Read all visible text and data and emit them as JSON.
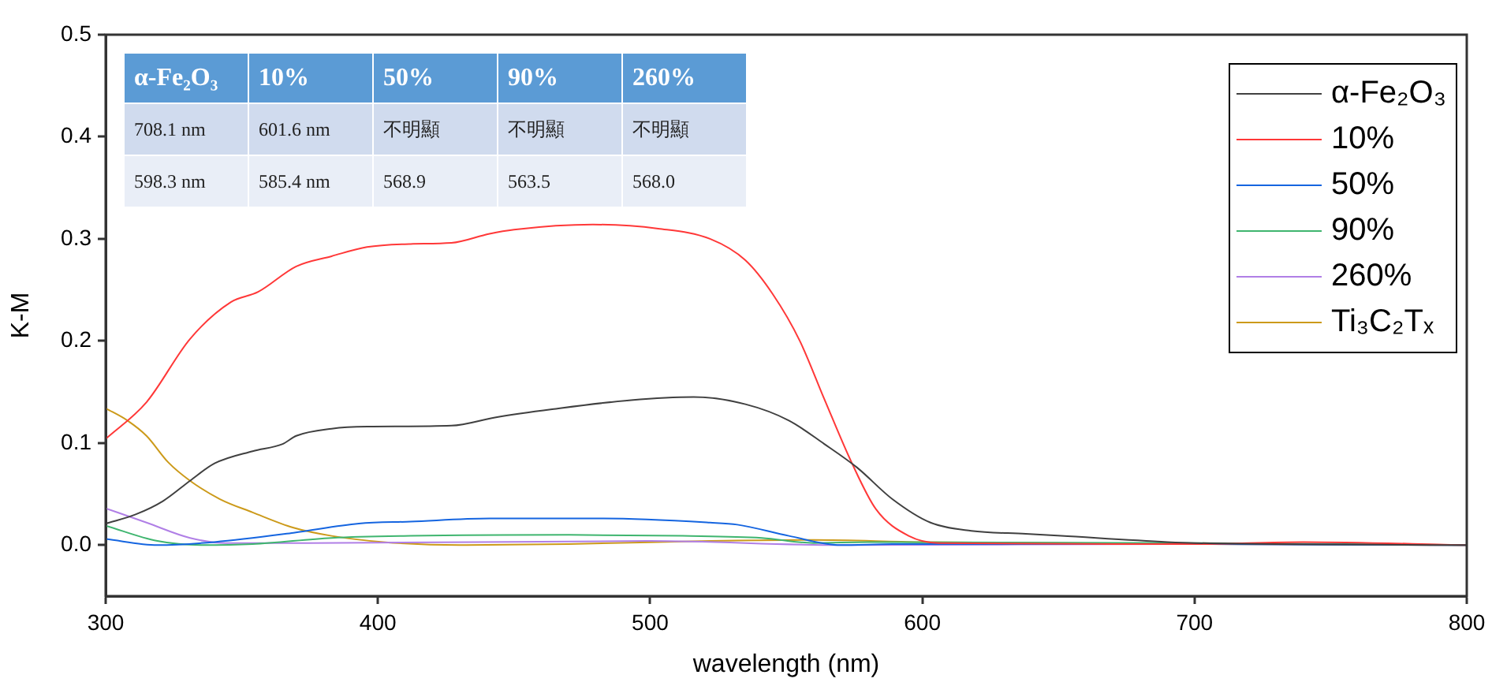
{
  "chart_data": {
    "type": "line",
    "xlabel": "wavelength (nm)",
    "ylabel": "K-M",
    "xlim": [
      300,
      800
    ],
    "xticks": [
      300,
      400,
      500,
      600,
      700,
      800
    ],
    "ylim": [
      -0.05,
      0.5
    ],
    "yticks": [
      {
        "value": 0,
        "label": "0.0"
      },
      0.1,
      0.2,
      0.3,
      0.4,
      0.5
    ],
    "legend": "top right",
    "marker": "none",
    "line_style": "solid",
    "grid": false,
    "annotations": [
      "α-Fe₂O₃",
      "10%",
      "50%",
      "90%",
      "260%",
      "708.1 nm",
      "601.6 nm",
      "不明顯",
      "不明顯",
      "不明顯",
      "598.3 nm",
      "585.4 nm",
      "568.9",
      "563.5",
      "568.0"
    ],
    "series": [
      {
        "name": "α-Fe₂O₃",
        "color": "#404040",
        "x": [
          300,
          311,
          321,
          331,
          340,
          354,
          365,
          370,
          383,
          396,
          427,
          443,
          464,
          493,
          516,
          535,
          551,
          564,
          576,
          589,
          603,
          618,
          638,
          651,
          690,
          700,
          800
        ],
        "values": [
          0.021,
          0.03,
          0.043,
          0.063,
          0.08,
          0.092,
          0.099,
          0.107,
          0.114,
          0.116,
          0.117,
          0.125,
          0.133,
          0.142,
          0.145,
          0.138,
          0.122,
          0.099,
          0.076,
          0.045,
          0.022,
          0.014,
          0.011,
          0.009,
          0.003,
          0.002,
          0
        ]
      },
      {
        "name": "10%",
        "color": "#ff3838",
        "x": [
          300,
          315,
          331,
          346,
          356,
          370,
          383,
          396,
          412,
          427,
          441,
          450,
          479,
          503,
          522,
          535,
          545,
          555,
          564,
          574,
          583,
          595,
          606,
          700,
          740,
          800
        ],
        "values": [
          0.104,
          0.14,
          0.202,
          0.238,
          0.248,
          0.273,
          0.283,
          0.292,
          0.295,
          0.296,
          0.305,
          0.309,
          0.314,
          0.31,
          0.3,
          0.279,
          0.246,
          0.2,
          0.143,
          0.081,
          0.035,
          0.009,
          0.002,
          0.001,
          0.003,
          0
        ]
      },
      {
        "name": "50%",
        "color": "#1565e0",
        "x": [
          300,
          319,
          340,
          369,
          393,
          412,
          441,
          483,
          522,
          532,
          551,
          570,
          589,
          700,
          800
        ],
        "values": [
          0.006,
          0,
          0.003,
          0.012,
          0.021,
          0.023,
          0.026,
          0.026,
          0.022,
          0.02,
          0.009,
          0,
          0.001,
          0.001,
          0
        ]
      },
      {
        "name": "90%",
        "color": "#3fb56f",
        "x": [
          300,
          319,
          335,
          354,
          383,
          412,
          470,
          512,
          541,
          560,
          580,
          700,
          800
        ],
        "values": [
          0.019,
          0.004,
          0,
          0.001,
          0.007,
          0.009,
          0.01,
          0.009,
          0.007,
          0.002,
          0.003,
          0.002,
          0
        ]
      },
      {
        "name": "260%",
        "color": "#b07fe6",
        "x": [
          300,
          315,
          331,
          344,
          373,
          500,
          570,
          700,
          800
        ],
        "values": [
          0.036,
          0.022,
          0.007,
          0.002,
          0.002,
          0.004,
          0,
          0.001,
          0
        ]
      },
      {
        "name": "Ti₃C₂Tₓ",
        "color": "#cc9a1a",
        "x": [
          300,
          308,
          315,
          323,
          331,
          342,
          354,
          369,
          383,
          402,
          430,
          470,
          522,
          560,
          599,
          700,
          800
        ],
        "values": [
          0.134,
          0.122,
          0.107,
          0.081,
          0.063,
          0.045,
          0.032,
          0.017,
          0.009,
          0.003,
          0,
          0.001,
          0.004,
          0.005,
          0.003,
          0.001,
          0
        ]
      }
    ]
  }
}
